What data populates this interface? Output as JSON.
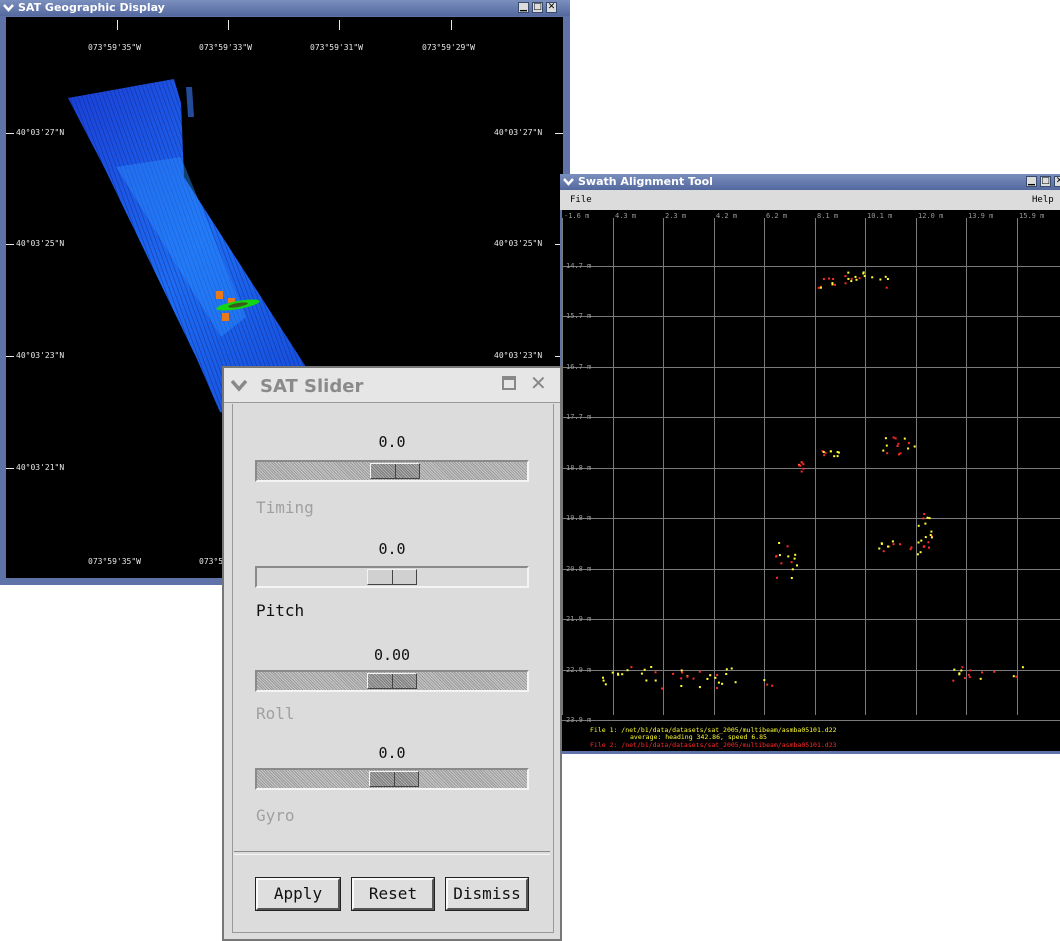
{
  "geo": {
    "title": "SAT Geographic Display",
    "top_lons": [
      "073°59'35\"W",
      "073°59'33\"W",
      "073°59'31\"W",
      "073°59'29\"W"
    ],
    "bottom_lons": [
      "073°59'35\"W",
      "073°5"
    ],
    "left_lats": [
      "40°03'27\"N",
      "40°03'25\"N",
      "40°03'23\"N",
      "40°03'21\"N"
    ],
    "right_lats": [
      "40°03'27\"N",
      "40°03'25\"N",
      "40°03'23\"N"
    ]
  },
  "swath": {
    "title": "Swath Alignment Tool",
    "menu_file": "File",
    "menu_help": "Help",
    "x_ticks": [
      "-1.6 m",
      "4.3 m",
      "2.3 m",
      "4.2 m",
      "6.2 m",
      "8.1 m",
      "10.1 m",
      "12.0 m",
      "13.9 m",
      "15.9 m"
    ],
    "y_ticks": [
      "14.7 m",
      "15.7 m",
      "16.7 m",
      "17.7 m",
      "18.8 m",
      "19.8 m",
      "20.8 m",
      "21.9 m",
      "22.9 m",
      "23.9 m"
    ],
    "status1": "File 1: /net/b1/data/datasets/sat_2005/multibeam/asmba05101.d22",
    "status2": "average: heading 342.86, speed 6.85",
    "status3": "File 2: /net/b1/data/datasets/sat_2005/multibeam/asmba05101.d23",
    "colors": {
      "file1": "#ffff33",
      "file2": "#ff2a2a"
    }
  },
  "slider": {
    "title": "SAT Slider",
    "sliders": [
      {
        "label": "Timing",
        "value": "0.0",
        "enabled": false
      },
      {
        "label": "Pitch",
        "value": "0.0",
        "enabled": true
      },
      {
        "label": "Roll",
        "value": "0.00",
        "enabled": false
      },
      {
        "label": "Gyro",
        "value": "0.0",
        "enabled": false
      }
    ],
    "buttons": {
      "apply": "Apply",
      "reset": "Reset",
      "dismiss": "Dismiss"
    }
  }
}
